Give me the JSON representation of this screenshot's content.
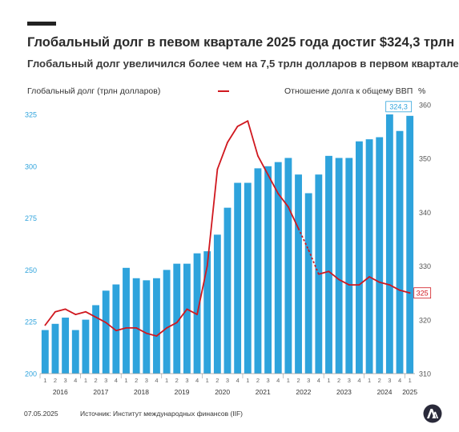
{
  "header": {
    "title": "Глобальный долг в певом квартале 2025 года достиг $324,3 трлн",
    "subtitle": "Глобальный долг увеличился более чем на 7,5 трлн долларов в первом квартале"
  },
  "legend": {
    "left_series": "Глобальный долг (трлн долларов)",
    "right_series": "Отношение долга к общему  ВВП",
    "right_unit": "%"
  },
  "footer": {
    "date": "07.05.2025",
    "source": "Источник: Институт международных финансов (IIF)"
  },
  "colors": {
    "bar": "#2ea3dc",
    "line": "#d0181f",
    "left_axis_text": "#2ea3dc",
    "right_axis_text": "#555555"
  },
  "chart_data": {
    "type": "bar",
    "quarter_labels": [
      "1",
      "2",
      "3",
      "4",
      "1",
      "2",
      "3",
      "4",
      "1",
      "2",
      "3",
      "4",
      "1",
      "2",
      "3",
      "4",
      "1",
      "2",
      "3",
      "4",
      "1",
      "2",
      "3",
      "4",
      "1",
      "2",
      "3",
      "4",
      "1",
      "2",
      "3",
      "4",
      "1",
      "2",
      "3",
      "4",
      "1"
    ],
    "year_labels": [
      {
        "year": "2016",
        "start": 0,
        "count": 4
      },
      {
        "year": "2017",
        "start": 4,
        "count": 4
      },
      {
        "year": "2018",
        "start": 8,
        "count": 4
      },
      {
        "year": "2019",
        "start": 12,
        "count": 4
      },
      {
        "year": "2020",
        "start": 16,
        "count": 4
      },
      {
        "year": "2021",
        "start": 20,
        "count": 4
      },
      {
        "year": "2022",
        "start": 24,
        "count": 4
      },
      {
        "year": "2023",
        "start": 28,
        "count": 4
      },
      {
        "year": "2024",
        "start": 32,
        "count": 4
      },
      {
        "year": "2025",
        "start": 36,
        "count": 1
      }
    ],
    "bars": {
      "name": "Глобальный долг (трлн долларов)",
      "values": [
        221,
        224,
        227,
        221,
        226,
        233,
        240,
        243,
        251,
        246,
        245,
        246,
        250,
        253,
        253,
        258,
        259,
        267,
        280,
        292,
        292,
        299,
        300,
        302,
        304,
        296,
        287,
        296,
        305,
        304,
        304,
        312,
        313,
        314,
        325,
        317,
        324.3
      ]
    },
    "line": {
      "name": "Отношение долга к общему  ВВП",
      "values": [
        319,
        321.5,
        322,
        321,
        321.5,
        320.5,
        319.5,
        318,
        318.5,
        318.5,
        317.5,
        317,
        318.5,
        319.5,
        322,
        321,
        330,
        348,
        353,
        356,
        357,
        350.5,
        347,
        343.5,
        341,
        337,
        333,
        328.5,
        329,
        327.5,
        326.5,
        326.5,
        328,
        327,
        326.5,
        325.5,
        325
      ]
    },
    "dashed_segment": [
      25,
      27
    ],
    "left_axis": {
      "ylim": [
        200,
        325
      ],
      "ticks": [
        "200",
        "225",
        "250",
        "275",
        "300",
        "325"
      ]
    },
    "right_axis": {
      "ylim": [
        310,
        360
      ],
      "ticks": [
        "310",
        "320",
        "330",
        "340",
        "350",
        "360"
      ]
    },
    "callouts": {
      "last_bar": "324,3",
      "last_line": "325"
    }
  }
}
